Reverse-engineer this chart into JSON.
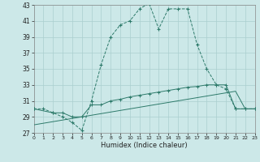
{
  "bg_color": "#cce8e8",
  "grid_color": "#aacfcf",
  "line_color": "#2d7a6a",
  "xlim": [
    0,
    23
  ],
  "ylim": [
    27,
    43
  ],
  "xtick_vals": [
    0,
    1,
    2,
    3,
    4,
    5,
    6,
    7,
    8,
    9,
    10,
    11,
    12,
    13,
    14,
    15,
    16,
    17,
    18,
    19,
    20,
    21,
    22,
    23
  ],
  "ytick_vals": [
    27,
    29,
    31,
    33,
    35,
    37,
    39,
    41,
    43
  ],
  "xlabel": "Humidex (Indice chaleur)",
  "s1_x": [
    0,
    1,
    2,
    3,
    4,
    5,
    6,
    7,
    8,
    9,
    10,
    11,
    12,
    13,
    14,
    15,
    16,
    17,
    18,
    19,
    20,
    21,
    22,
    23
  ],
  "s1_y": [
    30.0,
    30.0,
    29.5,
    29.0,
    28.3,
    27.3,
    31.0,
    35.5,
    39.0,
    40.5,
    41.0,
    42.5,
    43.2,
    40.0,
    42.5,
    42.5,
    42.5,
    38.0,
    35.0,
    33.0,
    32.5,
    30.0,
    30.0,
    30.0
  ],
  "s2_x": [
    0,
    2,
    3,
    4,
    5,
    6,
    7,
    8,
    9,
    10,
    11,
    12,
    13,
    14,
    15,
    16,
    17,
    18,
    19,
    20,
    21,
    22,
    23
  ],
  "s2_y": [
    30.0,
    29.5,
    29.5,
    29.0,
    29.0,
    30.5,
    30.5,
    31.0,
    31.2,
    31.5,
    31.7,
    31.9,
    32.1,
    32.3,
    32.5,
    32.7,
    32.8,
    33.0,
    33.0,
    33.0,
    30.0,
    30.0,
    30.0
  ],
  "s3_x": [
    0,
    1,
    2,
    3,
    4,
    5,
    6,
    7,
    8,
    9,
    10,
    11,
    12,
    13,
    14,
    15,
    16,
    17,
    18,
    19,
    20,
    21,
    22,
    23
  ],
  "s3_y": [
    28.0,
    28.2,
    28.4,
    28.6,
    28.8,
    29.0,
    29.2,
    29.4,
    29.6,
    29.8,
    30.0,
    30.2,
    30.4,
    30.6,
    30.8,
    31.0,
    31.2,
    31.4,
    31.6,
    31.8,
    32.0,
    32.2,
    30.0,
    30.0
  ]
}
